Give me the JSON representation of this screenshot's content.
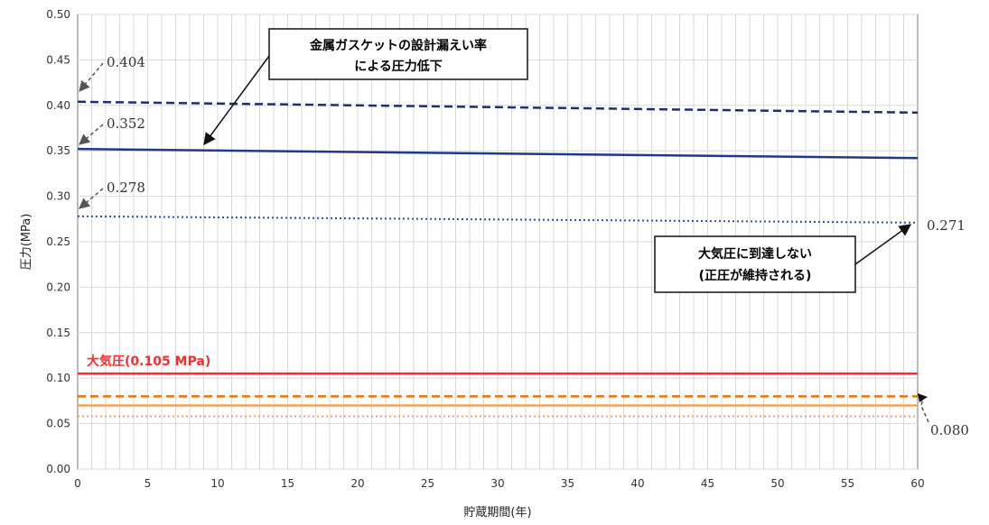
{
  "chart_data": {
    "type": "line",
    "xlabel": "貯蔵期間(年)",
    "ylabel": "圧力(MPa)",
    "xlim": [
      0,
      60
    ],
    "ylim": [
      0,
      0.5
    ],
    "x_ticks": [
      "0",
      "5",
      "10",
      "15",
      "20",
      "25",
      "30",
      "35",
      "40",
      "45",
      "50",
      "55",
      "60"
    ],
    "y_ticks": [
      "0.00",
      "0.05",
      "0.10",
      "0.15",
      "0.20",
      "0.25",
      "0.30",
      "0.35",
      "0.40",
      "0.45",
      "0.50"
    ],
    "grid": true,
    "series": [
      {
        "style": "dashed",
        "color": "#1f2f6e",
        "x": [
          0,
          60
        ],
        "y": [
          0.404,
          0.392
        ]
      },
      {
        "style": "solid",
        "color": "#1f3a8a",
        "x": [
          0,
          60
        ],
        "y": [
          0.352,
          0.342
        ]
      },
      {
        "style": "dotted",
        "color": "#2a4fa8",
        "x": [
          0,
          60
        ],
        "y": [
          0.278,
          0.271
        ]
      },
      {
        "name": "大気圧(0.105 MPa)",
        "style": "solid",
        "color": "#ff2a2a",
        "x": [
          0,
          60
        ],
        "y": [
          0.105,
          0.105
        ]
      },
      {
        "style": "dashed",
        "color": "#e8740c",
        "x": [
          0,
          60
        ],
        "y": [
          0.08,
          0.08
        ]
      },
      {
        "style": "solid",
        "color": "#f2a25e",
        "x": [
          0,
          60
        ],
        "y": [
          0.07,
          0.07
        ]
      },
      {
        "style": "dotted",
        "color": "#f2a25e",
        "x": [
          0,
          60
        ],
        "y": [
          0.058,
          0.058
        ]
      }
    ],
    "annotations": {
      "val_404": "0.404",
      "val_352": "0.352",
      "val_278": "0.278",
      "val_271": "0.271",
      "val_080": "0.080",
      "callout1_line1": "金属ガスケットの設計漏えい率",
      "callout1_line2": "による圧力低下",
      "callout2_line1": "大気圧に到達しない",
      "callout2_line2": "(正圧が維持される)",
      "atm_label": "大気圧(0.105 MPa)"
    },
    "colors": {
      "atm": "#ff2a2a",
      "grid": "#d8d8d8",
      "axis": "#555555"
    }
  }
}
